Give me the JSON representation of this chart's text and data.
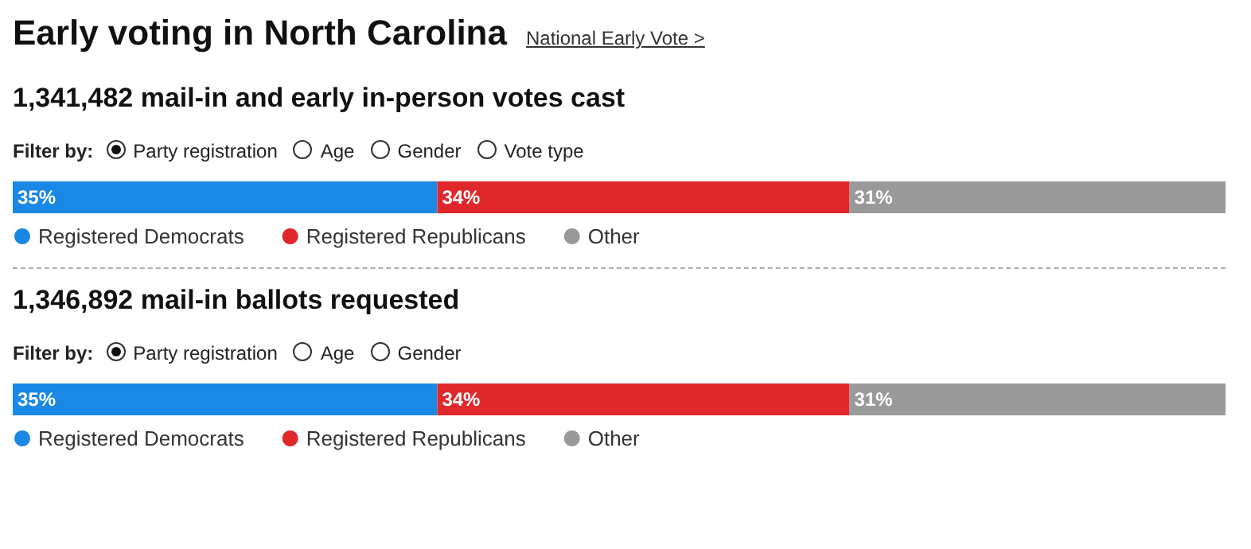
{
  "chart_data": [
    {
      "type": "bar",
      "orientation": "horizontal",
      "stacked": true,
      "title": "Early voting in North Carolina",
      "subtitle": "1,341,482 mail-in and early in-person votes cast",
      "annotations": [
        "National Early Vote >",
        "Filter by:",
        "Party registration",
        "Age",
        "Gender",
        "Vote type"
      ],
      "categories": [
        null
      ],
      "legend": "bottom",
      "series": [
        {
          "name": "Registered Democrats",
          "color": "#1a88e5",
          "values": [
            35
          ],
          "value_labels": [
            "35%"
          ]
        },
        {
          "name": "Registered Republicans",
          "color": "#e0282c",
          "values": [
            34
          ],
          "value_labels": [
            "34%"
          ]
        },
        {
          "name": "Other",
          "color": "#999999",
          "values": [
            31
          ],
          "value_labels": [
            "31%"
          ]
        }
      ]
    },
    {
      "type": "bar",
      "orientation": "horizontal",
      "stacked": true,
      "subtitle": "1,346,892 mail-in ballots requested",
      "annotations": [
        "Filter by:",
        "Party registration",
        "Age",
        "Gender"
      ],
      "categories": [
        null
      ],
      "legend": "bottom",
      "series": [
        {
          "name": "Registered Democrats",
          "color": "#1a88e5",
          "values": [
            35
          ],
          "value_labels": [
            "35%"
          ]
        },
        {
          "name": "Registered Republicans",
          "color": "#e0282c",
          "values": [
            34
          ],
          "value_labels": [
            "34%"
          ]
        },
        {
          "name": "Other",
          "color": "#999999",
          "values": [
            31
          ],
          "value_labels": [
            "31%"
          ]
        }
      ]
    }
  ]
}
